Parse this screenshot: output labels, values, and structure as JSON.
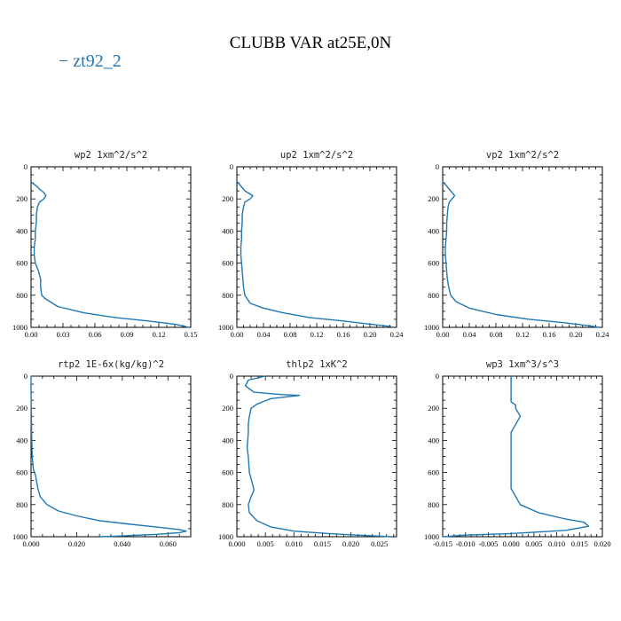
{
  "title": "CLUBB VAR at25E,0N",
  "legend": {
    "dash": "−",
    "label": "zt92_2",
    "color": "#1f77b4"
  },
  "chart_data": [
    {
      "type": "line",
      "title": "wp2  1xm^2/s^2",
      "xlim": [
        0,
        0.15
      ],
      "xticks": [
        0.0,
        0.03,
        0.06,
        0.09,
        0.12,
        0.15
      ],
      "xticklabels": [
        "0.00",
        "0.03",
        "0.06",
        "0.09",
        "0.12",
        "0.15"
      ],
      "ylim": [
        1000,
        0
      ],
      "yticks": [
        0,
        200,
        400,
        600,
        800,
        1000
      ],
      "series": [
        {
          "color": "#1f77b4",
          "x": [
            0.0,
            0.003,
            0.006,
            0.008,
            0.012,
            0.014,
            0.012,
            0.008,
            0.006,
            0.005,
            0.005,
            0.004,
            0.004,
            0.003,
            0.003,
            0.004,
            0.007,
            0.009,
            0.009,
            0.009,
            0.01,
            0.013,
            0.025,
            0.05,
            0.08,
            0.11,
            0.135,
            0.145,
            0.148
          ],
          "y": [
            95,
            110,
            125,
            140,
            160,
            180,
            200,
            220,
            250,
            300,
            350,
            400,
            450,
            500,
            550,
            600,
            650,
            700,
            720,
            750,
            800,
            820,
            870,
            910,
            940,
            960,
            980,
            995,
            1000
          ]
        }
      ]
    },
    {
      "type": "line",
      "title": "up2  1xm^2/s^2",
      "xlim": [
        0,
        0.24
      ],
      "xticks": [
        0.0,
        0.04,
        0.08,
        0.12,
        0.16,
        0.2,
        0.24
      ],
      "xticklabels": [
        "0.00",
        "0.04",
        "0.08",
        "0.12",
        "0.16",
        "0.20",
        "0.24"
      ],
      "ylim": [
        1000,
        0
      ],
      "yticks": [
        0,
        200,
        400,
        600,
        800,
        1000
      ],
      "series": [
        {
          "color": "#1f77b4",
          "x": [
            0.0,
            0.004,
            0.008,
            0.012,
            0.018,
            0.024,
            0.02,
            0.012,
            0.01,
            0.008,
            0.008,
            0.007,
            0.007,
            0.006,
            0.006,
            0.007,
            0.008,
            0.009,
            0.01,
            0.012,
            0.02,
            0.04,
            0.07,
            0.11,
            0.16,
            0.2,
            0.232
          ],
          "y": [
            90,
            110,
            130,
            150,
            165,
            180,
            200,
            220,
            250,
            300,
            350,
            400,
            450,
            500,
            550,
            600,
            650,
            700,
            750,
            800,
            850,
            880,
            910,
            940,
            960,
            980,
            995
          ]
        }
      ]
    },
    {
      "type": "line",
      "title": "vp2  1xm^2/s^2",
      "xlim": [
        0,
        0.24
      ],
      "xticks": [
        0.0,
        0.04,
        0.08,
        0.12,
        0.16,
        0.2,
        0.24
      ],
      "xticklabels": [
        "0.00",
        "0.04",
        "0.08",
        "0.12",
        "0.16",
        "0.20",
        "0.24"
      ],
      "ylim": [
        1000,
        0
      ],
      "yticks": [
        0,
        200,
        400,
        600,
        800,
        1000
      ],
      "series": [
        {
          "color": "#1f77b4",
          "x": [
            0.0,
            0.004,
            0.008,
            0.012,
            0.018,
            0.014,
            0.01,
            0.008,
            0.007,
            0.006,
            0.006,
            0.005,
            0.004,
            0.004,
            0.005,
            0.006,
            0.007,
            0.009,
            0.012,
            0.02,
            0.04,
            0.08,
            0.13,
            0.18,
            0.22,
            0.235
          ],
          "y": [
            95,
            110,
            130,
            150,
            180,
            200,
            220,
            250,
            300,
            350,
            400,
            450,
            500,
            550,
            600,
            650,
            700,
            750,
            800,
            840,
            880,
            920,
            950,
            970,
            990,
            1000
          ]
        }
      ]
    },
    {
      "type": "line",
      "title": "rtp2  1E-6x(kg/kg)^2",
      "xlim": [
        0,
        0.07
      ],
      "xticks": [
        0.0,
        0.02,
        0.04,
        0.06
      ],
      "xticklabels": [
        "0.000",
        "0.020",
        "0.040",
        "0.060"
      ],
      "ylim": [
        1000,
        0
      ],
      "yticks": [
        0,
        200,
        400,
        600,
        800,
        1000
      ],
      "series": [
        {
          "color": "#1f77b4",
          "x": [
            0.0,
            0.0,
            0.0001,
            0.0002,
            0.0003,
            0.0005,
            0.001,
            0.002,
            0.003,
            0.004,
            0.007,
            0.012,
            0.02,
            0.03,
            0.042,
            0.055,
            0.065,
            0.068,
            0.065,
            0.055,
            0.04,
            0.03
          ],
          "y": [
            0,
            100,
            200,
            300,
            400,
            500,
            580,
            620,
            700,
            750,
            800,
            840,
            870,
            900,
            920,
            940,
            955,
            965,
            975,
            985,
            995,
            1000
          ]
        }
      ]
    },
    {
      "type": "line",
      "title": "thlp2  1xK^2",
      "xlim": [
        0,
        0.028
      ],
      "xticks": [
        0.0,
        0.005,
        0.01,
        0.015,
        0.02,
        0.025
      ],
      "xticklabels": [
        "0.000",
        "0.005",
        "0.010",
        "0.015",
        "0.020",
        "0.025"
      ],
      "ylim": [
        1000,
        0
      ],
      "yticks": [
        0,
        200,
        400,
        600,
        800,
        1000
      ],
      "series": [
        {
          "color": "#1f77b4",
          "x": [
            0.005,
            0.002,
            0.0015,
            0.003,
            0.008,
            0.011,
            0.006,
            0.0045,
            0.0035,
            0.0025,
            0.0022,
            0.002,
            0.002,
            0.0019,
            0.0018,
            0.002,
            0.0022,
            0.0028,
            0.003,
            0.0025,
            0.002,
            0.0022,
            0.0035,
            0.006,
            0.01,
            0.016,
            0.021,
            0.025,
            0.027
          ],
          "y": [
            0,
            25,
            60,
            100,
            115,
            120,
            140,
            160,
            175,
            200,
            250,
            300,
            350,
            400,
            450,
            500,
            600,
            680,
            710,
            750,
            800,
            850,
            900,
            940,
            965,
            980,
            990,
            996,
            1000
          ]
        }
      ]
    },
    {
      "type": "line",
      "title": "wp3  1xm^3/s^3",
      "xlim": [
        -0.015,
        0.02
      ],
      "xticks": [
        -0.015,
        -0.01,
        -0.005,
        0.0,
        0.005,
        0.01,
        0.015,
        0.02
      ],
      "xticklabels": [
        "-0.015",
        "-0.010",
        "-0.005",
        "0.000",
        "0.005",
        "0.010",
        "0.015",
        "0.020"
      ],
      "ylim": [
        1000,
        0
      ],
      "yticks": [
        0,
        200,
        400,
        600,
        800,
        1000
      ],
      "series": [
        {
          "color": "#1f77b4",
          "x": [
            0.0,
            0.0,
            0.0,
            0.001,
            0.001,
            0.002,
            0.001,
            0.0,
            0.0,
            0.0,
            0.0,
            0.0,
            0.001,
            0.002,
            0.006,
            0.012,
            0.016,
            0.017,
            0.012,
            0.0,
            -0.01,
            -0.015
          ],
          "y": [
            0,
            100,
            160,
            180,
            200,
            250,
            300,
            350,
            450,
            550,
            650,
            700,
            750,
            800,
            850,
            890,
            910,
            935,
            960,
            980,
            990,
            1000
          ]
        }
      ]
    }
  ]
}
